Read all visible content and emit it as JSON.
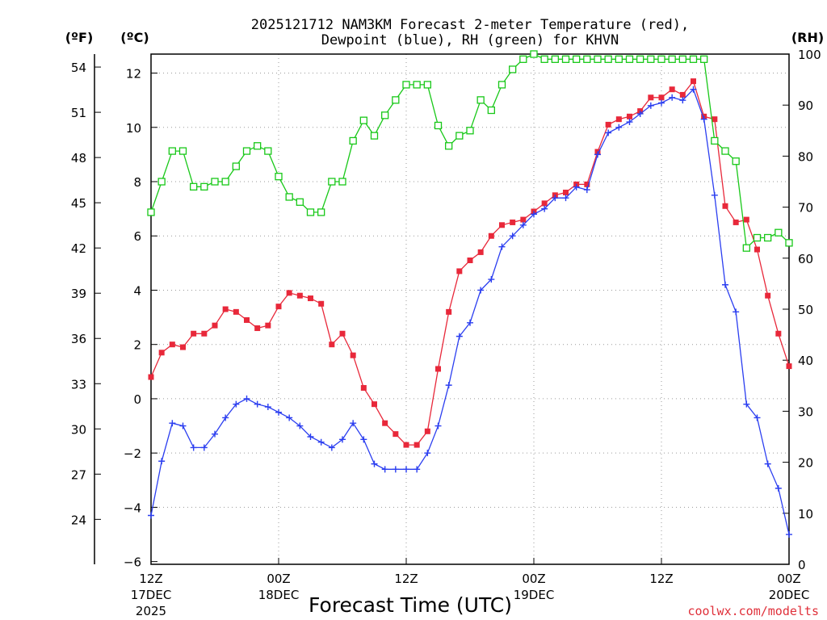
{
  "chart_data": {
    "type": "line",
    "title_line1": "2025121712 NAM3KM Forecast 2-meter Temperature (red),",
    "title_line2": "Dewpoint (blue), RH (green) for KHVN",
    "xlabel": "Forecast Time (UTC)",
    "watermark": "coolwx.com/modelts",
    "y_left_f_label": "(ºF)",
    "y_left_c_label": "(ºC)",
    "y_right_label": "(RH)",
    "ylim_c": [
      -6.1,
      12.7
    ],
    "ylim_rh": [
      0,
      100
    ],
    "x_hours_range": [
      0,
      60
    ],
    "c_ticks": [
      -6,
      -4,
      -2,
      0,
      2,
      4,
      6,
      8,
      10,
      12
    ],
    "c_tick_labels": [
      "−6",
      "−4",
      "−2",
      "0",
      "2",
      "4",
      "6",
      "8",
      "10",
      "12"
    ],
    "f_ticks": [
      24,
      27,
      30,
      33,
      36,
      39,
      42,
      45,
      48,
      51,
      54
    ],
    "f_tick_labels": [
      "24",
      "27",
      "30",
      "33",
      "36",
      "39",
      "42",
      "45",
      "48",
      "51",
      "54"
    ],
    "rh_ticks": [
      0,
      10,
      20,
      30,
      40,
      50,
      60,
      70,
      80,
      90,
      100
    ],
    "rh_tick_labels": [
      "0",
      "10",
      "20",
      "30",
      "40",
      "50",
      "60",
      "70",
      "80",
      "90",
      "100"
    ],
    "x_ticks": [
      {
        "hour": 0,
        "label": "12Z",
        "date": "17DEC",
        "year": "2025"
      },
      {
        "hour": 12,
        "label": "00Z",
        "date": "18DEC",
        "year": ""
      },
      {
        "hour": 24,
        "label": "12Z",
        "date": "",
        "year": ""
      },
      {
        "hour": 36,
        "label": "00Z",
        "date": "19DEC",
        "year": ""
      },
      {
        "hour": 48,
        "label": "12Z",
        "date": "",
        "year": ""
      },
      {
        "hour": 60,
        "label": "00Z",
        "date": "20DEC",
        "year": ""
      }
    ],
    "series": [
      {
        "name": "2-meter Temperature",
        "units": "°C",
        "color": "#e8283a",
        "marker": "filled-square",
        "values": [
          0.8,
          1.7,
          2.0,
          1.9,
          2.4,
          2.4,
          2.7,
          3.3,
          3.2,
          2.9,
          2.6,
          2.7,
          3.4,
          3.9,
          3.8,
          3.7,
          3.5,
          2.0,
          2.4,
          1.6,
          0.4,
          -0.2,
          -0.9,
          -1.3,
          -1.7,
          -1.7,
          -1.2,
          1.1,
          3.2,
          4.7,
          5.1,
          5.4,
          6.0,
          6.4,
          6.5,
          6.6,
          6.9,
          7.2,
          7.5,
          7.6,
          7.9,
          7.9,
          9.1,
          10.1,
          10.3,
          10.4,
          10.6,
          11.1,
          11.1,
          11.4,
          11.2,
          11.7,
          10.4,
          10.3,
          7.1,
          6.5,
          6.6,
          5.5,
          3.8,
          2.4,
          1.2
        ]
      },
      {
        "name": "Dewpoint",
        "units": "°C",
        "color": "#2b3ef0",
        "marker": "plus",
        "values": [
          -4.3,
          -2.3,
          -0.9,
          -1.0,
          -1.8,
          -1.8,
          -1.3,
          -0.7,
          -0.2,
          0.0,
          -0.2,
          -0.3,
          -0.5,
          -0.7,
          -1.0,
          -1.4,
          -1.6,
          -1.8,
          -1.5,
          -0.9,
          -1.5,
          -2.4,
          -2.6,
          -2.6,
          -2.6,
          -2.6,
          -2.0,
          -1.0,
          0.5,
          2.3,
          2.8,
          4.0,
          4.4,
          5.6,
          6.0,
          6.4,
          6.8,
          7.0,
          7.4,
          7.4,
          7.8,
          7.7,
          9.0,
          9.8,
          10.0,
          10.2,
          10.5,
          10.8,
          10.9,
          11.1,
          11.0,
          11.4,
          10.3,
          7.5,
          4.2,
          3.2,
          -0.2,
          -0.7,
          -2.4,
          -3.3,
          -5.0
        ]
      },
      {
        "name": "RH",
        "units": "%",
        "color": "#18c818",
        "marker": "open-square",
        "values": [
          69,
          75,
          81,
          81,
          74,
          74,
          75,
          75,
          78,
          81,
          82,
          81,
          76,
          72,
          71,
          69,
          69,
          75,
          75,
          83,
          87,
          84,
          88,
          91,
          94,
          94,
          94,
          86,
          82,
          84,
          85,
          91,
          89,
          94,
          97,
          99,
          100,
          99,
          99,
          99,
          99,
          99,
          99,
          99,
          99,
          99,
          99,
          99,
          99,
          99,
          99,
          99,
          99,
          83,
          81,
          79,
          62,
          64,
          64,
          65,
          63
        ]
      }
    ]
  }
}
